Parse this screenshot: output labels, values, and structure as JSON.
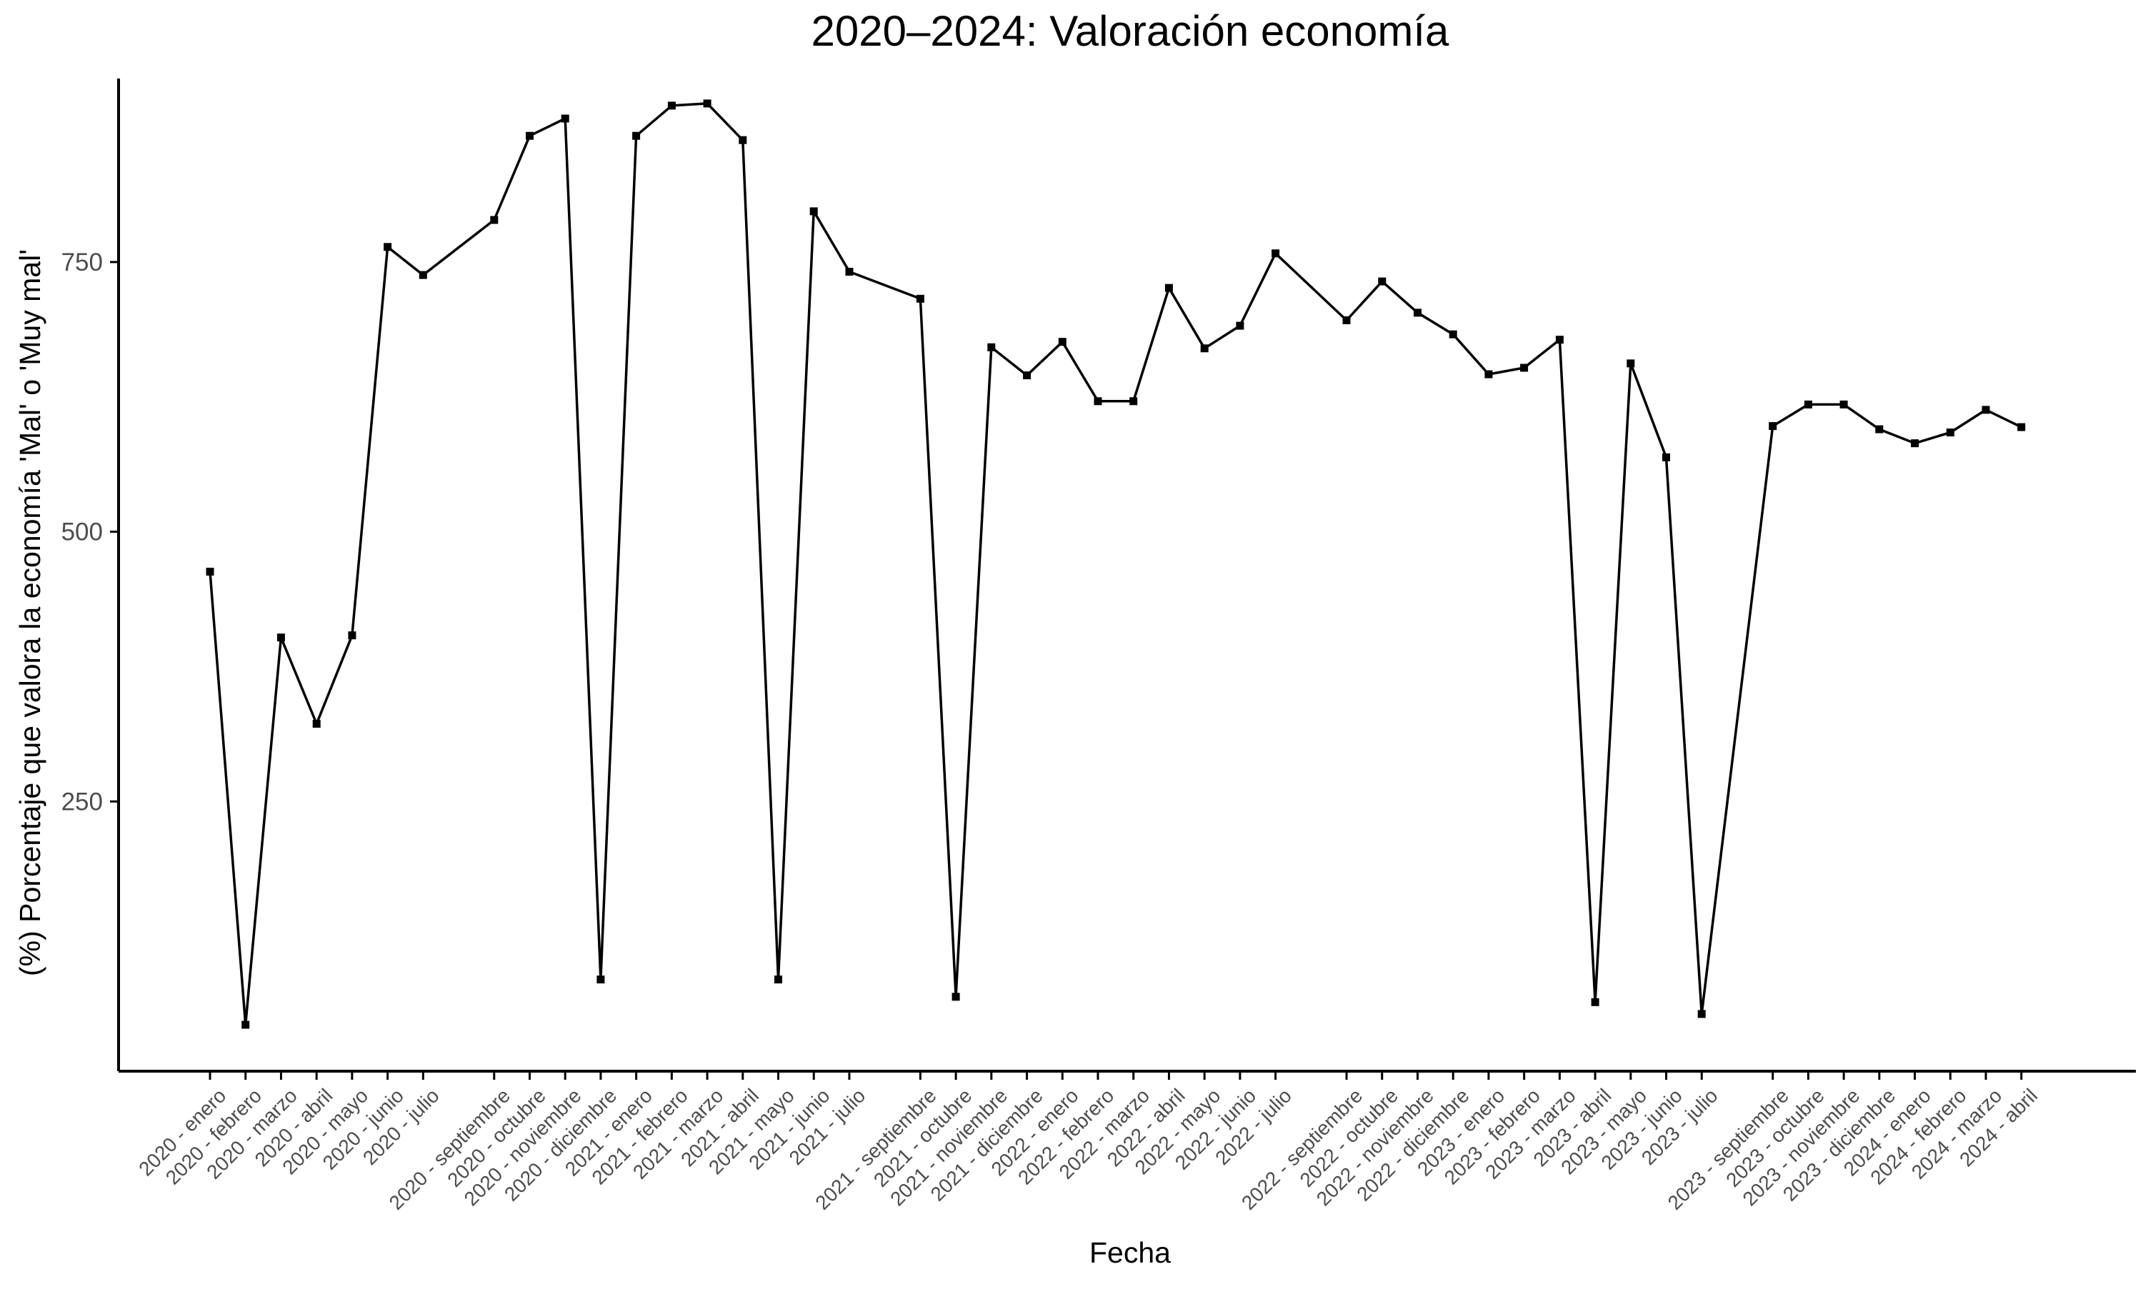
{
  "chart_data": {
    "type": "line",
    "title": "2020–2024: Valoración economía",
    "xlabel": "Fecha",
    "ylabel": "(%) Porcentaje que valora la economía 'Mal' o 'Muy mal'",
    "ylim": [
      0,
      930
    ],
    "yticks": [
      250,
      500,
      750
    ],
    "grid": false,
    "legend": "none",
    "colors": {
      "line": "#000000",
      "marker": "#000000",
      "axis": "#000000",
      "tick_text": "#4d4d4d"
    },
    "categories": [
      {
        "slot": 0,
        "label": "2020 - enero"
      },
      {
        "slot": 1,
        "label": "2020 - febrero"
      },
      {
        "slot": 2,
        "label": "2020 - marzo"
      },
      {
        "slot": 3,
        "label": "2020 - abril"
      },
      {
        "slot": 4,
        "label": "2020 - mayo"
      },
      {
        "slot": 5,
        "label": "2020 - junio"
      },
      {
        "slot": 6,
        "label": "2020 - julio"
      },
      {
        "slot": 8,
        "label": "2020 - septiembre"
      },
      {
        "slot": 9,
        "label": "2020 - octubre"
      },
      {
        "slot": 10,
        "label": "2020 - noviembre"
      },
      {
        "slot": 11,
        "label": "2020 - diciembre"
      },
      {
        "slot": 12,
        "label": "2021 - enero"
      },
      {
        "slot": 13,
        "label": "2021 - febrero"
      },
      {
        "slot": 14,
        "label": "2021 - marzo"
      },
      {
        "slot": 15,
        "label": "2021 - abril"
      },
      {
        "slot": 16,
        "label": "2021 - mayo"
      },
      {
        "slot": 17,
        "label": "2021 - junio"
      },
      {
        "slot": 18,
        "label": "2021 - julio"
      },
      {
        "slot": 20,
        "label": "2021 - septiembre"
      },
      {
        "slot": 21,
        "label": "2021 - octubre"
      },
      {
        "slot": 22,
        "label": "2021 - noviembre"
      },
      {
        "slot": 23,
        "label": "2021 - diciembre"
      },
      {
        "slot": 24,
        "label": "2022 - enero"
      },
      {
        "slot": 25,
        "label": "2022 - febrero"
      },
      {
        "slot": 26,
        "label": "2022 - marzo"
      },
      {
        "slot": 27,
        "label": "2022 - abril"
      },
      {
        "slot": 28,
        "label": "2022 - mayo"
      },
      {
        "slot": 29,
        "label": "2022 - junio"
      },
      {
        "slot": 30,
        "label": "2022 - julio"
      },
      {
        "slot": 32,
        "label": "2022 - septiembre"
      },
      {
        "slot": 33,
        "label": "2022 - octubre"
      },
      {
        "slot": 34,
        "label": "2022 - noviembre"
      },
      {
        "slot": 35,
        "label": "2022 - diciembre"
      },
      {
        "slot": 36,
        "label": "2023 - enero"
      },
      {
        "slot": 37,
        "label": "2023 - febrero"
      },
      {
        "slot": 38,
        "label": "2023 - marzo"
      },
      {
        "slot": 39,
        "label": "2023 - abril"
      },
      {
        "slot": 40,
        "label": "2023 - mayo"
      },
      {
        "slot": 41,
        "label": "2023 - junio"
      },
      {
        "slot": 42,
        "label": "2023 - julio"
      },
      {
        "slot": 44,
        "label": "2023 - septiembre"
      },
      {
        "slot": 45,
        "label": "2023 - octubre"
      },
      {
        "slot": 46,
        "label": "2023 - noviembre"
      },
      {
        "slot": 47,
        "label": "2023 - diciembre"
      },
      {
        "slot": 48,
        "label": "2024 - enero"
      },
      {
        "slot": 49,
        "label": "2024 - febrero"
      },
      {
        "slot": 50,
        "label": "2024 - marzo"
      },
      {
        "slot": 51,
        "label": "2024 - abril"
      }
    ],
    "series": [
      {
        "values": [
          463,
          43,
          402,
          322,
          404,
          764,
          738,
          789,
          867,
          883,
          85,
          867,
          895,
          897,
          863,
          85,
          797,
          741,
          716,
          69,
          671,
          645,
          676,
          621,
          621,
          726,
          670,
          691,
          758,
          696,
          732,
          703,
          683,
          646,
          652,
          678,
          64,
          656,
          569,
          53,
          598,
          618,
          618,
          595,
          582,
          592,
          613,
          597
        ]
      }
    ]
  }
}
